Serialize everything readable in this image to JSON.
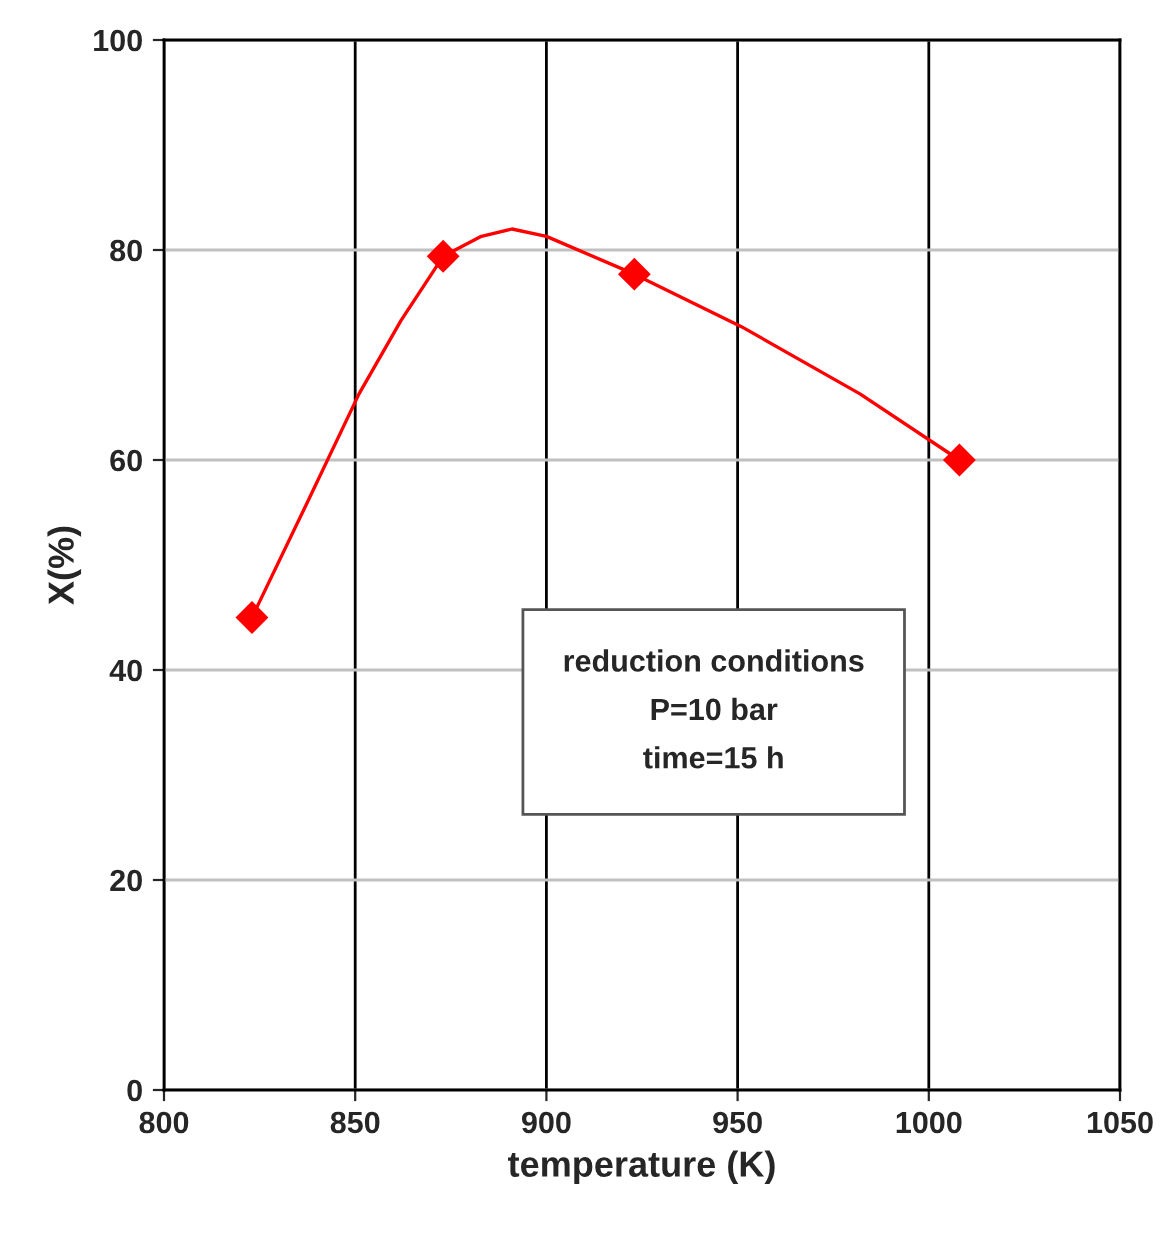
{
  "chart_data": {
    "type": "line",
    "xlabel": "temperature (K)",
    "ylabel": "X(%)",
    "series": [
      {
        "marker": "none",
        "color": "#ff0000",
        "x": [
          823,
          837,
          851,
          862,
          873,
          883,
          891,
          900,
          923,
          951,
          982,
          1008
        ],
        "values": [
          45,
          55.6,
          66.3,
          73.3,
          79.4,
          81.3,
          82,
          81.3,
          77.7,
          72.7,
          66.3,
          60
        ]
      },
      {
        "type": "scatter",
        "marker": "diamond",
        "color": "#ff0000",
        "x": [
          823,
          873,
          923,
          1008
        ],
        "values": [
          45,
          79.4,
          77.7,
          60
        ]
      }
    ],
    "line_style": "solid",
    "xlim": [
      800,
      1050
    ],
    "xticks": [
      800,
      850,
      900,
      950,
      1000,
      1050
    ],
    "ylim": [
      0,
      100
    ],
    "yticks": [
      0,
      20,
      40,
      60,
      80,
      100
    ],
    "grid": true,
    "annotations": [
      "reduction conditions\nP=10 bar\ntime=15 h"
    ]
  }
}
